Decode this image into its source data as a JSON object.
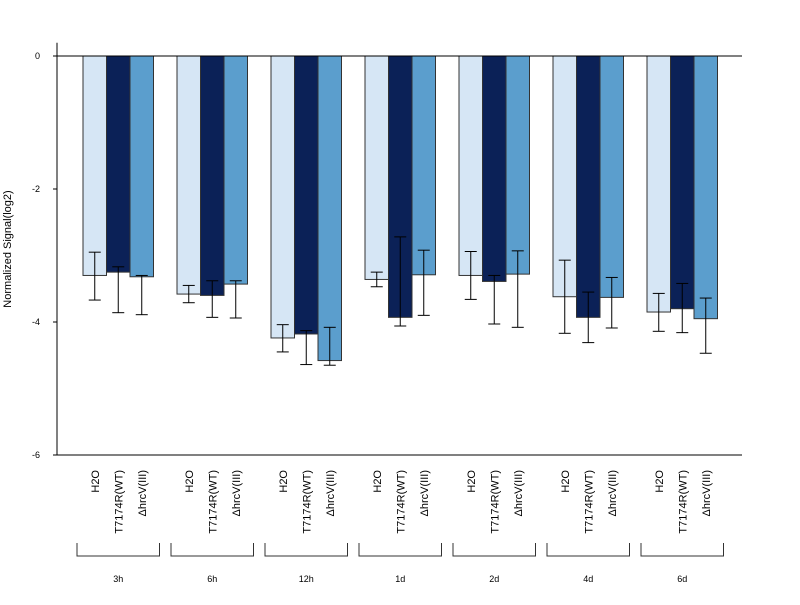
{
  "chart_data": {
    "type": "bar",
    "ylabel": "Normalized Signal(log2)",
    "ylim": [
      -6,
      0.2
    ],
    "yticks": [
      0,
      -2,
      -4,
      -6
    ],
    "baseline": 0,
    "groups": [
      "3h",
      "6h",
      "12h",
      "1d",
      "2d",
      "4d",
      "6d"
    ],
    "series": [
      {
        "name": "H2O",
        "color": "#d6e6f5",
        "values": [
          -3.3,
          -3.58,
          -4.24,
          -3.36,
          -3.3,
          -3.62,
          -3.85
        ],
        "err_low": [
          -3.67,
          -3.71,
          -4.45,
          -3.47,
          -3.66,
          -4.17,
          -4.14
        ],
        "err_high": [
          -2.95,
          -3.45,
          -4.04,
          -3.25,
          -2.94,
          -3.07,
          -3.57
        ]
      },
      {
        "name": "T7174R(WT)",
        "color": "#0b2157",
        "values": [
          -3.25,
          -3.6,
          -4.18,
          -3.93,
          -3.39,
          -3.93,
          -3.8
        ],
        "err_low": [
          -3.86,
          -3.93,
          -4.64,
          -4.06,
          -4.03,
          -4.31,
          -4.16
        ],
        "err_high": [
          -3.17,
          -3.38,
          -4.13,
          -2.72,
          -3.3,
          -3.55,
          -3.42
        ]
      },
      {
        "name": "ΔhrcV(III)",
        "color": "#5b9ecd",
        "values": [
          -3.32,
          -3.43,
          -4.58,
          -3.29,
          -3.28,
          -3.63,
          -3.95
        ],
        "err_low": [
          -3.89,
          -3.94,
          -4.65,
          -3.9,
          -4.08,
          -4.09,
          -4.47
        ],
        "err_high": [
          -3.3,
          -3.38,
          -4.08,
          -2.92,
          -2.93,
          -3.33,
          -3.64
        ]
      }
    ]
  }
}
